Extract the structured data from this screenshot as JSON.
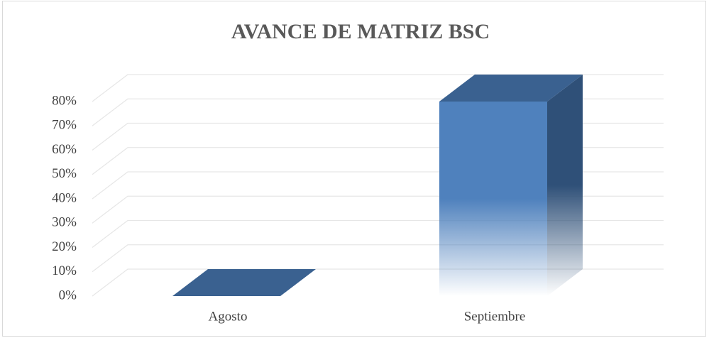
{
  "chart_data": {
    "type": "bar3d",
    "title": "AVANCE DE MATRIZ BSC",
    "categories": [
      "Agosto",
      "Septiembre"
    ],
    "values": [
      0,
      80
    ],
    "color": "#4f81bd",
    "ylim": [
      0,
      80
    ],
    "yticks": [
      {
        "value": 0,
        "label": "0%"
      },
      {
        "value": 10,
        "label": "10%"
      },
      {
        "value": 20,
        "label": "20%"
      },
      {
        "value": 30,
        "label": "30%"
      },
      {
        "value": 40,
        "label": "40%"
      },
      {
        "value": 50,
        "label": "50%"
      },
      {
        "value": 60,
        "label": "60%"
      },
      {
        "value": 70,
        "label": "70%"
      },
      {
        "value": 80,
        "label": "80%"
      }
    ],
    "grid": true
  }
}
